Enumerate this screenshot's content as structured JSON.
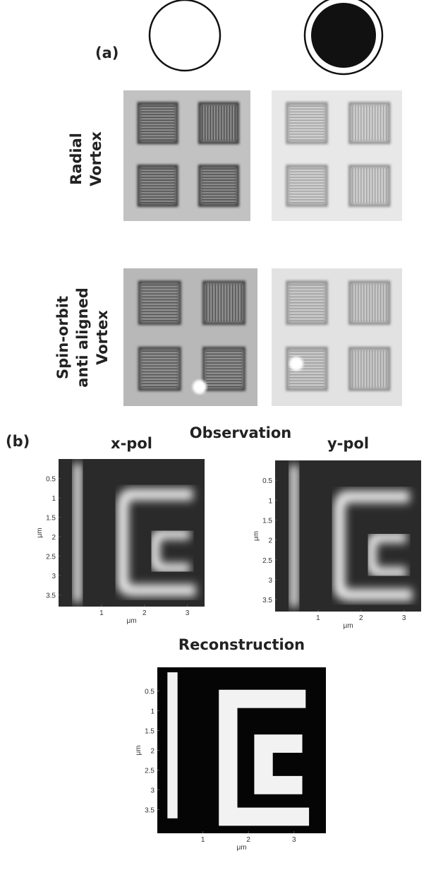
{
  "panel_a": {
    "label": "(a)",
    "rows": [
      {
        "label_lines": [
          "Radial",
          "Vortex"
        ]
      },
      {
        "label_lines": [
          "Spin-orbit",
          "anti aligned",
          "Vortex"
        ]
      }
    ]
  },
  "panel_b": {
    "label": "(b)",
    "observation_title": "Observation",
    "plots": [
      {
        "title": "x-pol",
        "x_label": "μm",
        "y_label": "μm",
        "xlim": [
          0,
          3.4
        ],
        "ylim": [
          0,
          3.8
        ],
        "xticks": [
          1,
          2,
          3
        ],
        "yticks": [
          0.5,
          1,
          1.5,
          2,
          2.5,
          3,
          3.5
        ]
      },
      {
        "title": "y-pol",
        "x_label": "μm",
        "y_label": "μm",
        "xlim": [
          0,
          3.4
        ],
        "ylim": [
          0,
          3.8
        ],
        "xticks": [
          1,
          2,
          3
        ],
        "yticks": [
          0.5,
          1,
          1.5,
          2,
          2.5,
          3,
          3.5
        ]
      },
      {
        "title": "Reconstruction",
        "x_label": "μm",
        "y_label": "μm",
        "xlim": [
          0,
          3.7
        ],
        "ylim": [
          -0.1,
          4.1
        ],
        "xticks": [
          1,
          2,
          3
        ],
        "yticks": [
          0.5,
          1,
          1.5,
          2,
          2.5,
          3,
          3.5
        ]
      }
    ]
  }
}
